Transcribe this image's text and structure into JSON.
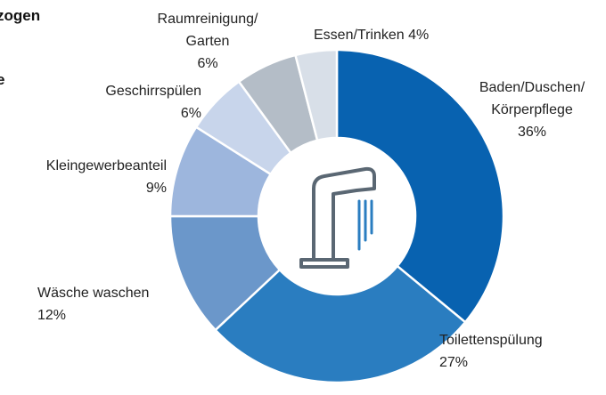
{
  "chart_data": {
    "type": "donut",
    "annotations": [
      "zogen",
      "e"
    ],
    "categories": [
      "Baden/Duschen/\nKörperpflege",
      "Toilettenspülung",
      "Wäsche waschen",
      "Kleingewerbeanteil",
      "Geschirrspülen",
      "Raumreinigung/\nGarten",
      "Essen/Trinken"
    ],
    "values": [
      36,
      27,
      12,
      9,
      6,
      6,
      4
    ],
    "value_labels": [
      "36%",
      "27%",
      "12%",
      "9%",
      "6%",
      "6%",
      "4%"
    ],
    "colors": [
      "#0862b0",
      "#2a7dc0",
      "#6b97ca",
      "#9db6dd",
      "#c8d5eb",
      "#b4bdc7",
      "#d8dfe8"
    ]
  }
}
